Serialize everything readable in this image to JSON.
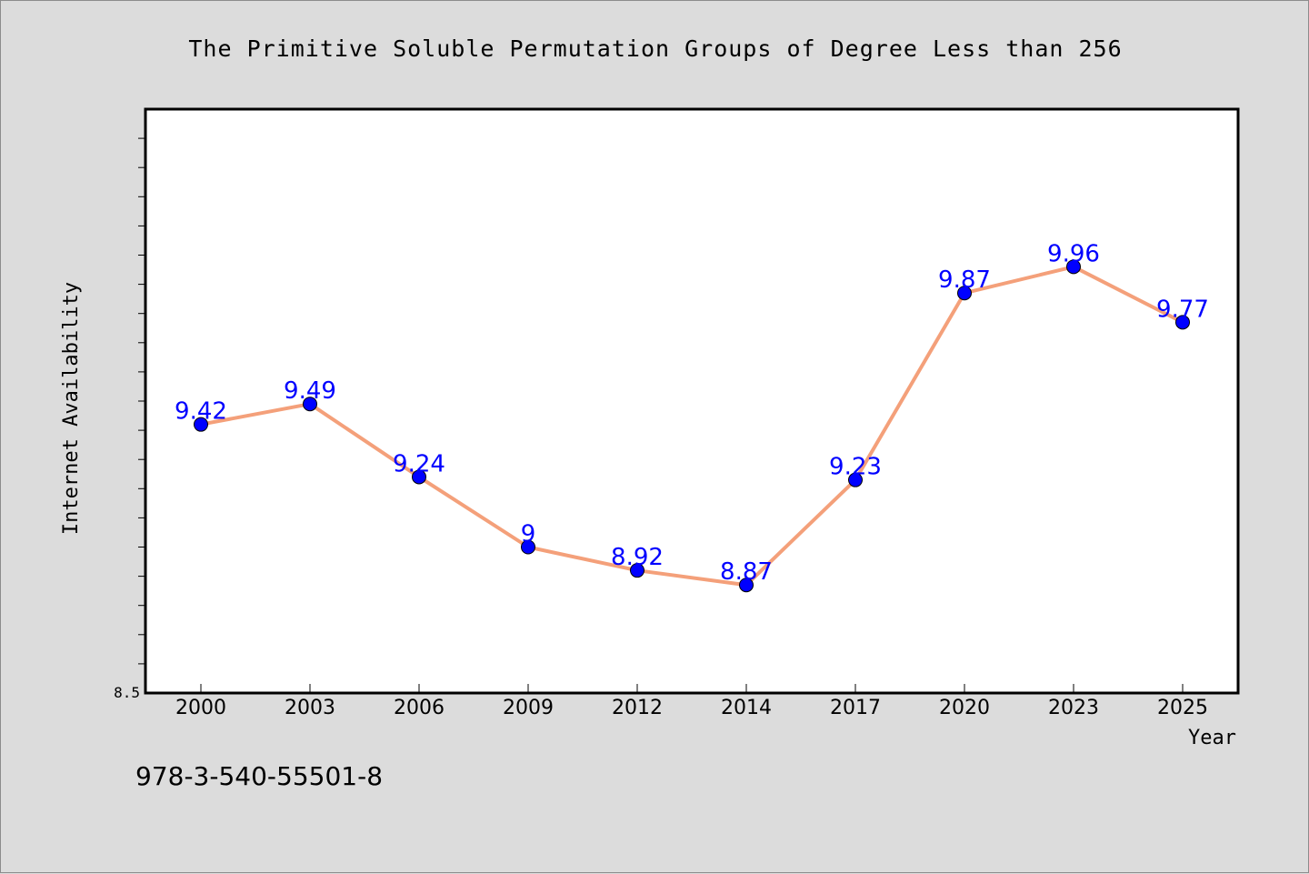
{
  "chart_data": {
    "type": "line",
    "title": "The Primitive Soluble Permutation Groups of Degree Less than 256",
    "xlabel": "Year",
    "ylabel": "Internet Availability",
    "categories": [
      "2000",
      "2003",
      "2006",
      "2009",
      "2012",
      "2014",
      "2017",
      "2020",
      "2023",
      "2025"
    ],
    "series": [
      {
        "values": [
          9.42,
          9.49,
          9.24,
          9,
          8.92,
          8.87,
          9.23,
          9.87,
          9.96,
          9.77
        ],
        "labels": [
          "9.42",
          "9.49",
          "9.24",
          "9",
          "8.92",
          "8.87",
          "9.23",
          "9.87",
          "9.96",
          "9.77"
        ]
      }
    ],
    "ylim": [
      8.5,
      10.5
    ],
    "y_tick_labels": [
      "8.5"
    ],
    "grid": false,
    "line_color": "#f4a07a",
    "marker_color": "#0000ff",
    "label_color": "#0000ff"
  },
  "footnote": "978-3-540-55501-8"
}
